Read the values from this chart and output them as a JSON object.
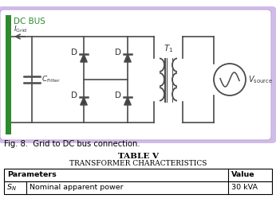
{
  "fig_caption": "Fig. 8.  Grid to DC bus connection.",
  "table_title": "TABLE V",
  "table_subtitle": "Transformer Characteristics",
  "table_headers": [
    "Parameters",
    "Value"
  ],
  "table_row_sym": "$S_N$",
  "table_row_desc": "Nominal apparent power",
  "table_row_val": "30 kVA",
  "box_bg": "#f7f4fb",
  "box_border": "#c0a8d8",
  "box_shadow": "#d0bce8",
  "dc_bus_color": "#2d8a2d",
  "circuit_line_color": "#4a4a4a",
  "diode_color": "#4a4a4a",
  "label_color": "#333333",
  "background_color": "#ffffff"
}
